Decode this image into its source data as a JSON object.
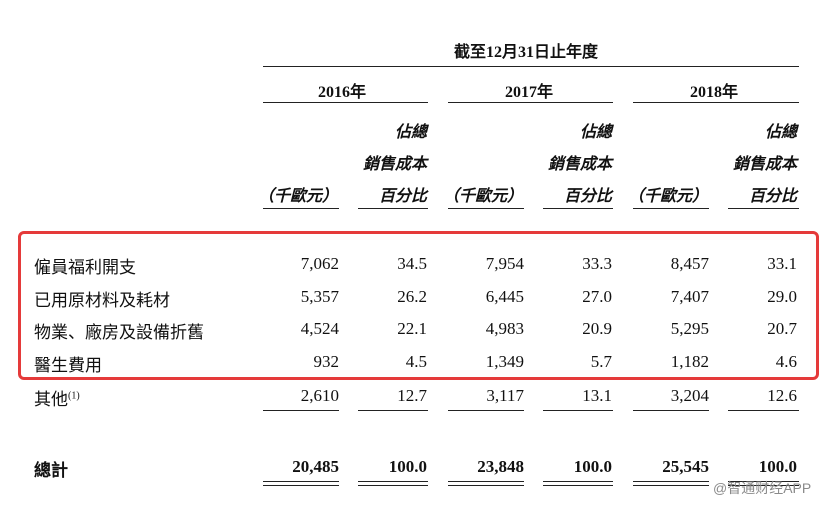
{
  "header": {
    "period": "截至12月31日止年度",
    "years": [
      "2016年",
      "2017年",
      "2018年"
    ],
    "col_top": "佔總",
    "col_mid": "銷售成本",
    "col_pct": "百分比",
    "col_amount": "（千歐元）"
  },
  "rows": [
    {
      "label": "僱員福利開支",
      "v2016": "7,062",
      "p2016": "34.5",
      "v2017": "7,954",
      "p2017": "33.3",
      "v2018": "8,457",
      "p2018": "33.1"
    },
    {
      "label": "已用原材料及耗材",
      "v2016": "5,357",
      "p2016": "26.2",
      "v2017": "6,445",
      "p2017": "27.0",
      "v2018": "7,407",
      "p2018": "29.0"
    },
    {
      "label": "物業、廠房及設備折舊",
      "v2016": "4,524",
      "p2016": "22.1",
      "v2017": "4,983",
      "p2017": "20.9",
      "v2018": "5,295",
      "p2018": "20.7"
    },
    {
      "label": "醫生費用",
      "v2016": "932",
      "p2016": "4.5",
      "v2017": "1,349",
      "p2017": "5.7",
      "v2018": "1,182",
      "p2018": "4.6"
    },
    {
      "label": "其他",
      "footnote": "(1)",
      "v2016": "2,610",
      "p2016": "12.7",
      "v2017": "3,117",
      "p2017": "13.1",
      "v2018": "3,204",
      "p2018": "12.6"
    }
  ],
  "total": {
    "label": "總計",
    "v2016": "20,485",
    "p2016": "100.0",
    "v2017": "23,848",
    "p2017": "100.0",
    "v2018": "25,545",
    "p2018": "100.0"
  },
  "highlight_color": "#e53a3a",
  "watermark": "@智通财经APP"
}
